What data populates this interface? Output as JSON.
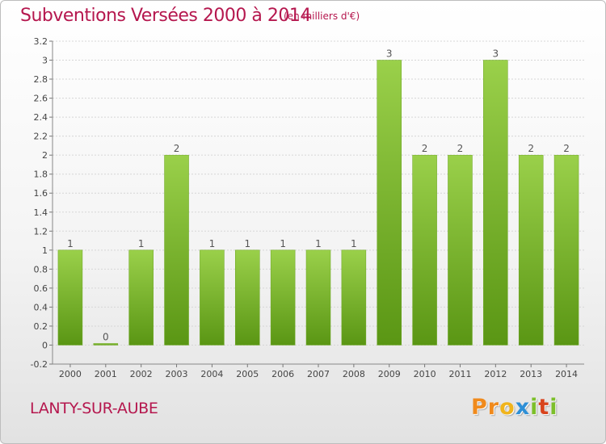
{
  "header": {
    "title": "Subventions Versées 2000 à 2014",
    "unit": "(en milliers d'€)"
  },
  "footer": {
    "commune": "LANTY-SUR-AUBE",
    "logo_letters": [
      "P",
      "r",
      "o",
      "x",
      "i",
      "t",
      "i"
    ]
  },
  "colors": {
    "title": "#b5174e",
    "bar_top": "#9ad04a",
    "bar_bottom": "#5a9614",
    "logo": [
      "#f08a1c",
      "#f08a1c",
      "#f0b41c",
      "#2e8fd6",
      "#7cbf2a",
      "#d8431c",
      "#7cbf2a"
    ]
  },
  "chart_data": {
    "type": "bar",
    "title": "Subventions Versées 2000 à 2014",
    "subtitle": "(en milliers d'€)",
    "categories": [
      "2000",
      "2001",
      "2002",
      "2003",
      "2004",
      "2005",
      "2006",
      "2007",
      "2008",
      "2009",
      "2010",
      "2011",
      "2012",
      "2013",
      "2014"
    ],
    "values": [
      1,
      0,
      1,
      2,
      1,
      1,
      1,
      1,
      1,
      3,
      2,
      2,
      3,
      2,
      2
    ],
    "data_labels": [
      "1",
      "0",
      "1",
      "2",
      "1",
      "1",
      "1",
      "1",
      "1",
      "3",
      "2",
      "2",
      "3",
      "2",
      "2"
    ],
    "ylim": [
      -0.2,
      3.2
    ],
    "yticks": [
      "-0.2",
      "0",
      "0.2",
      "0.4",
      "0.6",
      "0.8",
      "1",
      "1.2",
      "1.4",
      "1.6",
      "1.8",
      "2",
      "2.2",
      "2.4",
      "2.6",
      "2.8",
      "3",
      "3.2"
    ],
    "ytick_values": [
      -0.2,
      0,
      0.2,
      0.4,
      0.6,
      0.8,
      1,
      1.2,
      1.4,
      1.6,
      1.8,
      2,
      2.2,
      2.4,
      2.6,
      2.8,
      3,
      3.2
    ],
    "grid": "horizontal",
    "legend": "none"
  }
}
